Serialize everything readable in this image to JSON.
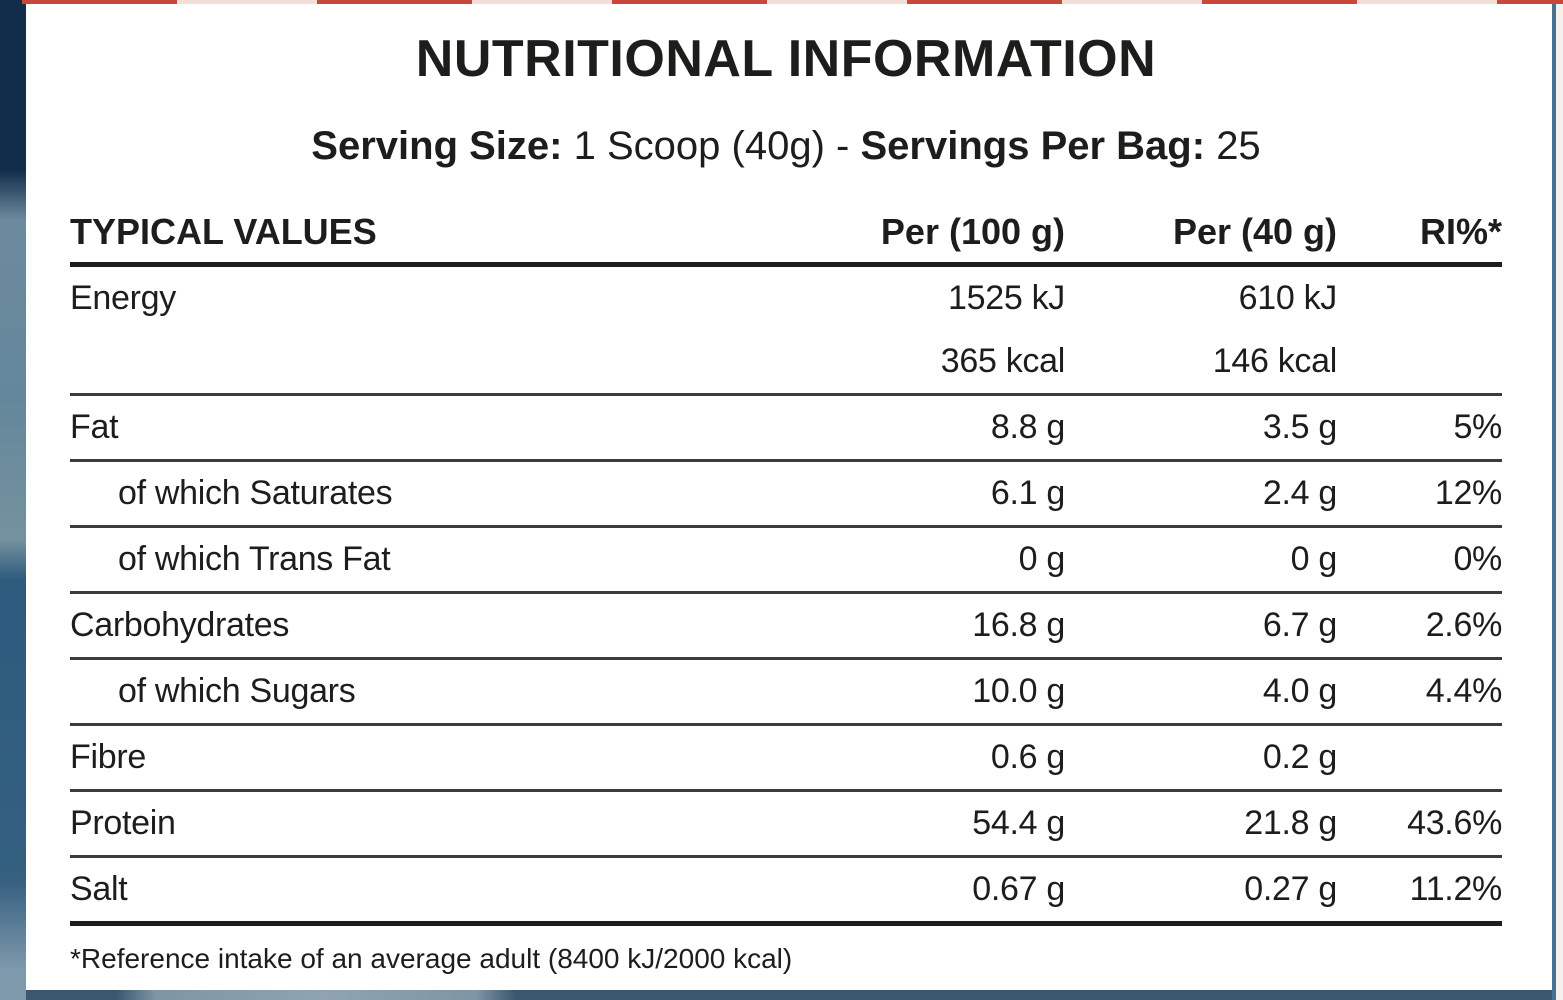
{
  "title": "NUTRITIONAL INFORMATION",
  "serving_line": {
    "size_label": "Serving Size:",
    "size_value": "1 Scoop (40g)",
    "separator": "-",
    "per_bag_label": "Servings Per Bag:",
    "per_bag_value": "25"
  },
  "table": {
    "headers": {
      "name": "TYPICAL VALUES",
      "per100": "Per (100 g)",
      "per40": "Per (40 g)",
      "ri": "RI%*"
    },
    "rows": [
      {
        "name": "Energy",
        "per100": "1525 kJ",
        "per40": "610 kJ",
        "ri": "",
        "indent": false,
        "rule_above": false
      },
      {
        "name": "",
        "per100": "365 kcal",
        "per40": "146 kcal",
        "ri": "",
        "indent": false,
        "rule_above": false
      },
      {
        "name": "Fat",
        "per100": "8.8 g",
        "per40": "3.5 g",
        "ri": "5%",
        "indent": false,
        "rule_above": true
      },
      {
        "name": "of which Saturates",
        "per100": "6.1 g",
        "per40": "2.4 g",
        "ri": "12%",
        "indent": true,
        "rule_above": true
      },
      {
        "name": "of which Trans Fat",
        "per100": "0 g",
        "per40": "0 g",
        "ri": "0%",
        "indent": true,
        "rule_above": true
      },
      {
        "name": "Carbohydrates",
        "per100": "16.8 g",
        "per40": "6.7 g",
        "ri": "2.6%",
        "indent": false,
        "rule_above": true
      },
      {
        "name": "of which Sugars",
        "per100": "10.0 g",
        "per40": "4.0 g",
        "ri": "4.4%",
        "indent": true,
        "rule_above": true
      },
      {
        "name": "Fibre",
        "per100": "0.6 g",
        "per40": "0.2 g",
        "ri": "",
        "indent": false,
        "rule_above": true
      },
      {
        "name": "Protein",
        "per100": "54.4 g",
        "per40": "21.8 g",
        "ri": "43.6%",
        "indent": false,
        "rule_above": true
      },
      {
        "name": "Salt",
        "per100": "0.67 g",
        "per40": "0.27 g",
        "ri": "11.2%",
        "indent": false,
        "rule_above": true
      }
    ]
  },
  "footnote": "*Reference intake of an average adult (8400 kJ/2000 kcal)",
  "colors": {
    "text": "#1d1d1b",
    "panel_background": "#ffffff",
    "rule_thin": "#3c3c3b",
    "rule_thick": "#1d1d1b",
    "package_navy": "#112d4a",
    "package_slate": "#39576f",
    "package_slate_light": "#7e95a4",
    "top_dash_red": "#c8463a",
    "top_dash_pale": "#f4ded8",
    "right_edge_line": "#4a7090"
  }
}
